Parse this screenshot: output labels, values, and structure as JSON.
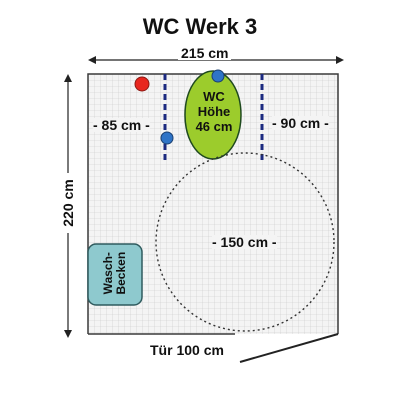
{
  "title": "WC Werk 3",
  "dimensions": {
    "width": "215 cm",
    "height": "220 cm",
    "left_gap": "- 85 cm -",
    "right_gap": "- 90 cm -",
    "turning_circle": "- 150 cm -",
    "door": "Tür  100 cm"
  },
  "toilet": {
    "line1": "WC",
    "line2": "Höhe",
    "line3": "46 cm"
  },
  "sink": {
    "line1": "Wasch-",
    "line2": "Becken"
  },
  "colors": {
    "toilet_fill": "#9ccc2c",
    "sink_fill": "#8ec9ce",
    "grab_bar": "#1c2a80",
    "red_button": "#e8261e",
    "blue_button": "#2f74c7",
    "grid": "#c8c8c8",
    "floor": "#f4f4f4"
  }
}
